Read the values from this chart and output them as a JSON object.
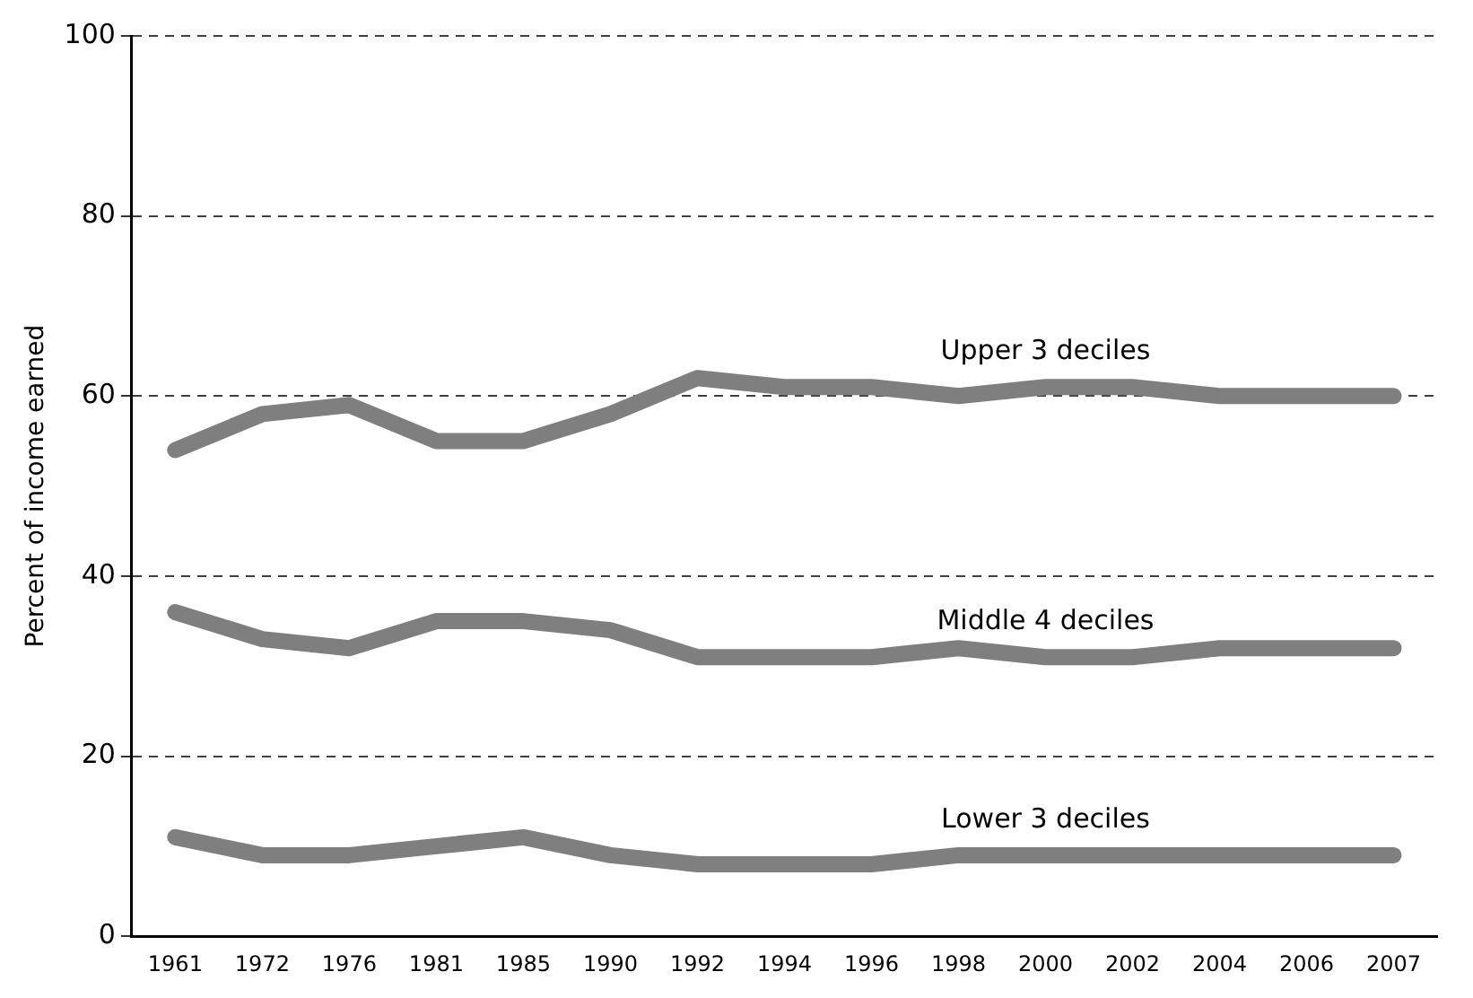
{
  "chart_data": {
    "type": "line",
    "ylabel": "Percent of income earned",
    "categories": [
      "1961",
      "1972",
      "1976",
      "1981",
      "1985",
      "1990",
      "1992",
      "1994",
      "1996",
      "1998",
      "2000",
      "2002",
      "2004",
      "2006",
      "2007"
    ],
    "series": [
      {
        "name": "Upper 3 deciles",
        "color": "#7f7f7f",
        "values": [
          54,
          58,
          59,
          55,
          55,
          58,
          62,
          61,
          61,
          60,
          61,
          61,
          60,
          60,
          60
        ]
      },
      {
        "name": "Middle 4 deciles",
        "color": "#7f7f7f",
        "values": [
          36,
          33,
          32,
          35,
          35,
          34,
          31,
          31,
          31,
          32,
          31,
          31,
          32,
          32,
          32
        ]
      },
      {
        "name": "Lower 3 deciles",
        "color": "#7f7f7f",
        "values": [
          11,
          9,
          9,
          10,
          11,
          9,
          8,
          8,
          8,
          9,
          9,
          9,
          9,
          9,
          9
        ]
      }
    ],
    "ylim": [
      0,
      100
    ],
    "yticks": [
      0,
      20,
      40,
      60,
      80,
      100
    ],
    "grid": "y",
    "legend": false,
    "marker": "none",
    "line_style": "solid"
  }
}
